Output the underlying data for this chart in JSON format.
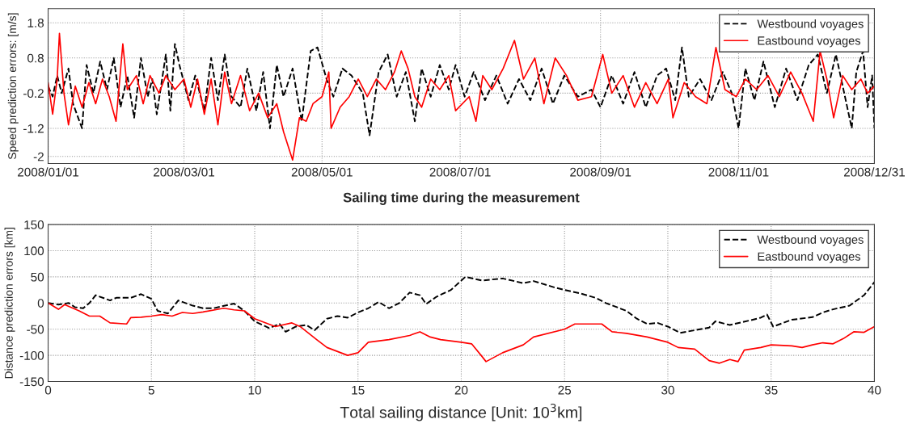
{
  "chart_data": [
    {
      "type": "line",
      "xlabel": "Sailing time during the measurement",
      "ylabel": "Speed prediction errors: [m/s]",
      "xlim": [
        "2008-01-01",
        "2008-12-31"
      ],
      "xticks": [
        {
          "value": "2008-01-01",
          "label": "2008/01/01"
        },
        {
          "value": "2008-03-01",
          "label": "2008/03/01"
        },
        {
          "value": "2008-05-01",
          "label": "2008/05/01"
        },
        {
          "value": "2008-07-01",
          "label": "2008/07/01"
        },
        {
          "value": "2008-09-01",
          "label": "2008/09/01"
        },
        {
          "value": "2008-11-01",
          "label": "2008/11/01"
        },
        {
          "value": "2008-12-31",
          "label": "2008/12/31"
        }
      ],
      "ylim": [
        -2.2,
        2.2
      ],
      "yticks": [
        1.8,
        0.8,
        -0.2,
        -1.2,
        -2
      ],
      "grid": true,
      "legend": "top right",
      "series": [
        {
          "name": "Westbound voyages",
          "color": "#000000",
          "line_style": "dashed",
          "x": [
            "2008-01-01",
            "2008-01-03",
            "2008-01-05",
            "2008-01-07",
            "2008-01-10",
            "2008-01-12",
            "2008-01-16",
            "2008-01-18",
            "2008-01-21",
            "2008-01-24",
            "2008-01-27",
            "2008-01-30",
            "2008-02-02",
            "2008-02-05",
            "2008-02-08",
            "2008-02-11",
            "2008-02-14",
            "2008-02-16",
            "2008-02-18",
            "2008-02-20",
            "2008-02-22",
            "2008-02-24",
            "2008-02-26",
            "2008-02-28",
            "2008-03-03",
            "2008-03-06",
            "2008-03-10",
            "2008-03-13",
            "2008-03-16",
            "2008-03-19",
            "2008-03-22",
            "2008-03-26",
            "2008-03-29",
            "2008-04-02",
            "2008-04-05",
            "2008-04-08",
            "2008-04-11",
            "2008-04-14",
            "2008-04-18",
            "2008-04-22",
            "2008-04-26",
            "2008-04-29",
            "2008-05-03",
            "2008-05-06",
            "2008-05-10",
            "2008-05-14",
            "2008-05-19",
            "2008-05-22",
            "2008-05-26",
            "2008-05-30",
            "2008-06-03",
            "2008-06-07",
            "2008-06-11",
            "2008-06-14",
            "2008-06-18",
            "2008-06-22",
            "2008-06-26",
            "2008-06-29",
            "2008-07-03",
            "2008-07-07",
            "2008-07-12",
            "2008-07-17",
            "2008-07-22",
            "2008-07-27",
            "2008-08-01",
            "2008-08-06",
            "2008-08-11",
            "2008-08-16",
            "2008-08-22",
            "2008-08-28",
            "2008-09-01",
            "2008-09-06",
            "2008-09-11",
            "2008-09-16",
            "2008-09-21",
            "2008-09-26",
            "2008-09-30",
            "2008-10-04",
            "2008-10-07",
            "2008-10-10",
            "2008-10-15",
            "2008-10-20",
            "2008-10-25",
            "2008-10-29",
            "2008-11-01",
            "2008-11-04",
            "2008-11-08",
            "2008-11-12",
            "2008-11-17",
            "2008-11-22",
            "2008-11-27",
            "2008-12-02",
            "2008-12-06",
            "2008-12-10",
            "2008-12-14",
            "2008-12-18",
            "2008-12-21",
            "2008-12-23",
            "2008-12-25",
            "2008-12-26",
            "2008-12-28",
            "2008-12-30",
            "2008-12-31"
          ],
          "values": [
            0.0,
            -0.3,
            0.3,
            -0.2,
            0.5,
            -0.5,
            -1.2,
            0.6,
            -0.2,
            0.7,
            -0.1,
            0.8,
            -0.6,
            0.3,
            -0.9,
            0.8,
            -0.3,
            0.2,
            -0.8,
            null,
            0.9,
            -0.7,
            1.2,
            0.6,
            -0.4,
            0.3,
            -0.7,
            0.8,
            -0.4,
            0.9,
            -0.3,
            -0.6,
            0.5,
            -0.7,
            0.4,
            -1.2,
            0.6,
            -0.3,
            0.5,
            -1.0,
            1.0,
            1.1,
            0.2,
            -0.3,
            0.5,
            0.3,
            -0.2,
            -1.4,
            0.4,
            0.9,
            -0.3,
            0.4,
            -1.0,
            0.5,
            -0.3,
            0.6,
            -0.1,
            0.6,
            -0.3,
            0.4,
            -0.4,
            0.3,
            -0.5,
            0.2,
            -0.4,
            0.5,
            -0.5,
            0.3,
            -0.3,
            -0.1,
            -0.6,
            0.3,
            -0.5,
            0.4,
            -0.6,
            0.3,
            0.5,
            -0.4,
            1.1,
            -0.3,
            0.2,
            -0.4,
            0.4,
            -0.2,
            -1.2,
            0.5,
            -0.4,
            0.7,
            -0.6,
            0.5,
            -0.4,
            0.6,
            0.9,
            -0.2,
            0.9,
            -0.3,
            -1.2,
            0.4,
            null,
            1.0,
            -0.6,
            0.3,
            -1.2
          ]
        },
        {
          "name": "Eastbound voyages",
          "color": "#ff0000",
          "line_style": "solid",
          "x": [
            "2008-01-01",
            "2008-01-03",
            "2008-01-05",
            "2008-01-06",
            "2008-01-08",
            "2008-01-10",
            "2008-01-13",
            "2008-01-16",
            "2008-01-19",
            "2008-01-22",
            "2008-01-25",
            "2008-01-28",
            "2008-01-31",
            "2008-02-03",
            "2008-02-05",
            "2008-02-09",
            "2008-02-12",
            "2008-02-15",
            "2008-02-19",
            "2008-02-22",
            "2008-02-26",
            "2008-03-01",
            "2008-03-04",
            "2008-03-07",
            "2008-03-10",
            "2008-03-13",
            "2008-03-16",
            "2008-03-19",
            "2008-03-22",
            "2008-03-26",
            "2008-03-30",
            "2008-04-03",
            "2008-04-07",
            "2008-04-11",
            "2008-04-14",
            "2008-04-17",
            "2008-04-18",
            "2008-04-21",
            "2008-04-24",
            "2008-04-27",
            "2008-05-01",
            "2008-05-04",
            "2008-05-05",
            "2008-05-09",
            "2008-05-13",
            "2008-05-17",
            "2008-05-21",
            "2008-05-25",
            "2008-05-29",
            "2008-06-02",
            "2008-06-05",
            "2008-06-08",
            "2008-06-11",
            "2008-06-14",
            "2008-06-18",
            "2008-06-22",
            "2008-06-26",
            "2008-06-29",
            "2008-07-02",
            "2008-07-05",
            "2008-07-08",
            "2008-07-11",
            "2008-07-15",
            "2008-07-20",
            "2008-07-25",
            "2008-07-29",
            "2008-08-03",
            "2008-08-07",
            "2008-08-12",
            "2008-08-17",
            "2008-08-22",
            "2008-08-28",
            "2008-09-02",
            "2008-09-06",
            "2008-09-11",
            "2008-09-16",
            "2008-09-21",
            "2008-09-26",
            "2008-10-01",
            "2008-10-03",
            "2008-10-08",
            "2008-10-13",
            "2008-10-18",
            "2008-10-22",
            "2008-10-26",
            "2008-10-31",
            "2008-11-04",
            "2008-11-09",
            "2008-11-14",
            "2008-11-19",
            "2008-11-24",
            "2008-11-29",
            "2008-12-04",
            "2008-12-07",
            "2008-12-10",
            "2008-12-13",
            "2008-12-17",
            "2008-12-21",
            "2008-12-25",
            "2008-12-28",
            "2008-12-31"
          ],
          "values": [
            0.1,
            -0.8,
            0.2,
            1.5,
            -0.2,
            -1.1,
            0.0,
            -0.6,
            0.1,
            -0.5,
            0.2,
            -0.3,
            -1.0,
            1.2,
            -0.1,
            0.3,
            -0.5,
            0.3,
            -0.2,
            0.3,
            -0.1,
            0.2,
            -0.6,
            0.2,
            -0.8,
            0.2,
            -1.1,
            0.4,
            -0.5,
            0.3,
            -0.7,
            -0.2,
            -0.9,
            -0.5,
            -1.3,
            -1.9,
            -2.1,
            -0.9,
            -1.0,
            -0.5,
            -0.3,
            0.4,
            -1.2,
            -0.6,
            -0.3,
            0.2,
            -0.3,
            0.2,
            -0.1,
            0.4,
            1.0,
            0.5,
            -0.3,
            -0.6,
            0.2,
            -0.1,
            0.3,
            -0.7,
            null,
            -0.3,
            -1.0,
            0.3,
            -0.1,
            0.5,
            1.3,
            0.2,
            0.8,
            -0.5,
            0.8,
            0.3,
            -0.4,
            -0.3,
            0.9,
            -0.2,
            0.3,
            -0.6,
            0.1,
            -0.5,
            0.2,
            -0.9,
            0.1,
            -0.3,
            -0.5,
            1.1,
            -0.1,
            -0.3,
            0.2,
            -0.1,
            0.3,
            -0.3,
            0.4,
            -0.2,
            -1.0,
            1.0,
            0.2,
            -0.9,
            0.3,
            -0.1,
            0.2,
            -0.2,
            0.0
          ]
        }
      ]
    },
    {
      "type": "line",
      "xlabel": "Total sailing distance [Unit: 10$^{3}$km]",
      "ylabel": "Distance prediction errors [km]",
      "xlim": [
        0,
        40
      ],
      "xticks": [
        0,
        5,
        10,
        15,
        20,
        25,
        30,
        35,
        40
      ],
      "ylim": [
        -150,
        150
      ],
      "yticks": [
        -150,
        -100,
        -50,
        0,
        50,
        100,
        150
      ],
      "grid": true,
      "legend": "top right",
      "series": [
        {
          "name": "Westbound voyages",
          "color": "#000000",
          "line_style": "dashed",
          "x": [
            0,
            0.5,
            1,
            1.3,
            1.7,
            2,
            2.3,
            3,
            3.3,
            4,
            4.5,
            5,
            5.3,
            5.8,
            6.3,
            7,
            7.5,
            8,
            9,
            9.5,
            10,
            10.7,
            11.2,
            11.5,
            12,
            12.5,
            12.9,
            13.5,
            14,
            14.5,
            15,
            15.5,
            16,
            16.5,
            17,
            17.5,
            18,
            18.3,
            18.8,
            19.5,
            20.2,
            21,
            22,
            23,
            23.5,
            24.5,
            25,
            25.8,
            26.5,
            27,
            28,
            28.5,
            29,
            29.5,
            30,
            30.6,
            31.3,
            32,
            32.3,
            33,
            34,
            34.5,
            34.8,
            35.1,
            36,
            37,
            37.5,
            38,
            38.8,
            39.5,
            40
          ],
          "values": [
            0,
            -3,
            0,
            -8,
            -10,
            0,
            15,
            5,
            10,
            10,
            17,
            8,
            -15,
            -20,
            5,
            -5,
            -10,
            -10,
            -1,
            -15,
            -35,
            -48,
            -40,
            -55,
            -45,
            -42,
            -52,
            -30,
            -25,
            -28,
            -18,
            -10,
            2,
            -10,
            0,
            20,
            15,
            -2,
            12,
            25,
            50,
            43,
            47,
            38,
            42,
            30,
            25,
            18,
            10,
            0,
            -15,
            -30,
            -40,
            -38,
            -45,
            -57,
            -52,
            -47,
            -35,
            -42,
            -33,
            -28,
            -22,
            -45,
            -32,
            -27,
            -18,
            -12,
            -5,
            15,
            40
          ]
        },
        {
          "name": "Eastbound voyages",
          "color": "#ff0000",
          "line_style": "solid",
          "x": [
            0,
            0.5,
            0.8,
            1.5,
            2,
            2.5,
            3,
            3.8,
            4,
            4.5,
            5,
            5.5,
            6,
            6.5,
            7,
            7.5,
            8.5,
            9,
            9.5,
            10,
            11,
            11.8,
            12.2,
            13,
            13.5,
            14.5,
            15,
            15.5,
            16.5,
            17.5,
            18,
            18.5,
            19,
            20,
            20.5,
            21,
            21.2,
            22,
            23,
            23.5,
            25,
            25.5,
            26.8,
            27.3,
            28,
            29,
            30,
            30.5,
            31.3,
            32,
            32.5,
            33,
            33.4,
            33.7,
            34.5,
            35,
            36,
            36.5,
            37,
            37.5,
            38,
            38.5,
            39,
            39.5,
            40
          ],
          "values": [
            0,
            -12,
            -3,
            -15,
            -25,
            -25,
            -38,
            -40,
            -28,
            -27,
            -25,
            -22,
            -25,
            -18,
            -20,
            -17,
            -10,
            -13,
            -15,
            -30,
            -45,
            -38,
            -45,
            -70,
            -85,
            -100,
            -95,
            -75,
            -70,
            -62,
            -55,
            -65,
            -70,
            -75,
            -78,
            -102,
            -112,
            -95,
            -80,
            -65,
            -50,
            -40,
            -40,
            -55,
            -58,
            -65,
            -75,
            -85,
            -88,
            -110,
            -115,
            -108,
            -112,
            -90,
            -85,
            -80,
            -82,
            -85,
            -80,
            -76,
            -78,
            -68,
            -55,
            -56,
            -45
          ]
        }
      ]
    }
  ]
}
